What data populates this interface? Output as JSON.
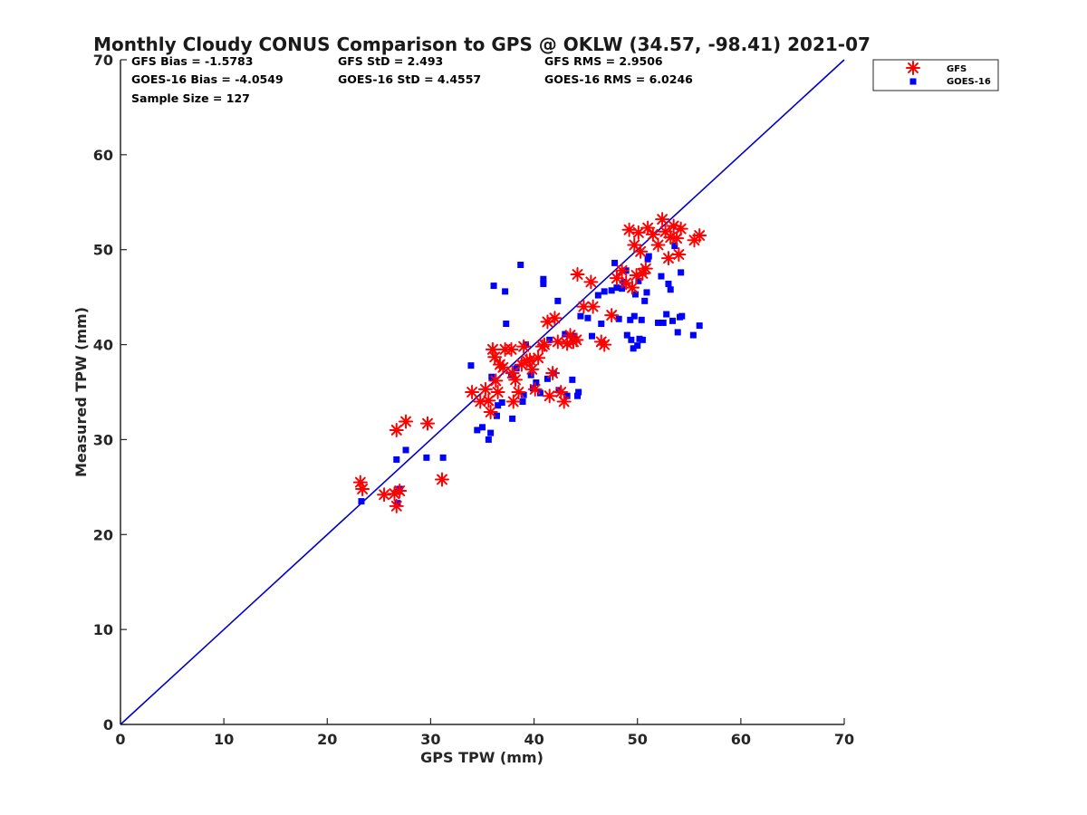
{
  "chart_data": {
    "type": "scatter",
    "title": "Monthly Cloudy CONUS Comparison to GPS @ OKLW (34.57, -98.41) 2021-07",
    "xlabel": "GPS TPW (mm)",
    "ylabel": "Measured TPW (mm)",
    "xlim": [
      0,
      70
    ],
    "ylim": [
      0,
      70
    ],
    "xticks": [
      "0",
      "10",
      "20",
      "30",
      "40",
      "50",
      "60",
      "70"
    ],
    "yticks": [
      "0",
      "10",
      "20",
      "30",
      "40",
      "50",
      "60",
      "70"
    ],
    "grid": false,
    "legend_position": "top-right-outside",
    "reference_line": {
      "from": [
        0,
        0
      ],
      "to": [
        70,
        70
      ],
      "color": "#0000cc"
    },
    "stats": [
      [
        "GFS Bias = -1.5783",
        "GFS StD = 2.493",
        "GFS RMS = 2.9506"
      ],
      [
        "GOES-16 Bias = -4.0549",
        "GOES-16 StD = 4.4557",
        "GOES-16 RMS = 6.0246"
      ],
      [
        "Sample Size = 127",
        "",
        ""
      ]
    ],
    "series": [
      {
        "name": "GFS",
        "marker": "asterisk",
        "color": "#ff0000",
        "points": [
          [
            23.2,
            25.5
          ],
          [
            23.4,
            24.8
          ],
          [
            25.5,
            24.2
          ],
          [
            26.5,
            24.3
          ],
          [
            26.7,
            23.0
          ],
          [
            27.0,
            24.6
          ],
          [
            26.7,
            31.0
          ],
          [
            27.6,
            31.9
          ],
          [
            29.7,
            31.7
          ],
          [
            31.1,
            25.8
          ],
          [
            34.0,
            35.0
          ],
          [
            34.8,
            34.0
          ],
          [
            35.3,
            35.3
          ],
          [
            35.6,
            34.1
          ],
          [
            35.8,
            32.9
          ],
          [
            36.0,
            39.5
          ],
          [
            36.2,
            38.7
          ],
          [
            36.3,
            36.2
          ],
          [
            36.5,
            35.0
          ],
          [
            36.7,
            37.9
          ],
          [
            37.0,
            37.6
          ],
          [
            37.2,
            39.5
          ],
          [
            37.8,
            39.5
          ],
          [
            37.9,
            37.0
          ],
          [
            38.0,
            34.0
          ],
          [
            38.2,
            36.3
          ],
          [
            38.5,
            35.0
          ],
          [
            38.8,
            37.9
          ],
          [
            39.0,
            39.8
          ],
          [
            39.3,
            38.3
          ],
          [
            39.6,
            38.4
          ],
          [
            39.8,
            37.4
          ],
          [
            40.1,
            35.3
          ],
          [
            40.4,
            38.6
          ],
          [
            40.8,
            39.8
          ],
          [
            41.0,
            40.0
          ],
          [
            41.3,
            42.4
          ],
          [
            41.5,
            34.6
          ],
          [
            41.8,
            37.0
          ],
          [
            42.0,
            42.8
          ],
          [
            42.3,
            40.3
          ],
          [
            42.6,
            35.0
          ],
          [
            42.9,
            34.0
          ],
          [
            43.2,
            40.1
          ],
          [
            43.5,
            41.0
          ],
          [
            43.8,
            40.3
          ],
          [
            44.1,
            40.5
          ],
          [
            44.2,
            47.4
          ],
          [
            44.8,
            44.0
          ],
          [
            45.5,
            46.6
          ],
          [
            45.7,
            44.0
          ],
          [
            46.5,
            40.3
          ],
          [
            46.8,
            40.0
          ],
          [
            47.5,
            43.1
          ],
          [
            48.0,
            47.0
          ],
          [
            48.5,
            47.8
          ],
          [
            48.9,
            46.5
          ],
          [
            49.2,
            52.1
          ],
          [
            49.5,
            46.0
          ],
          [
            49.7,
            50.5
          ],
          [
            49.9,
            47.3
          ],
          [
            50.1,
            51.8
          ],
          [
            50.3,
            49.8
          ],
          [
            50.5,
            47.5
          ],
          [
            50.8,
            48.0
          ],
          [
            51.0,
            52.3
          ],
          [
            51.5,
            51.6
          ],
          [
            52.0,
            50.5
          ],
          [
            52.4,
            53.2
          ],
          [
            52.7,
            51.9
          ],
          [
            53.0,
            49.1
          ],
          [
            53.2,
            51.3
          ],
          [
            53.5,
            52.5
          ],
          [
            53.8,
            51.2
          ],
          [
            54.0,
            49.5
          ],
          [
            54.2,
            52.2
          ],
          [
            55.5,
            51.0
          ],
          [
            56.0,
            51.5
          ]
        ]
      },
      {
        "name": "GOES-16",
        "marker": "square",
        "color": "#0000ff",
        "points": [
          [
            23.3,
            23.5
          ],
          [
            26.8,
            24.5
          ],
          [
            26.8,
            23.3
          ],
          [
            27.0,
            24.8
          ],
          [
            26.7,
            27.9
          ],
          [
            27.6,
            28.9
          ],
          [
            29.6,
            28.1
          ],
          [
            31.2,
            28.1
          ],
          [
            33.9,
            37.8
          ],
          [
            34.5,
            31.0
          ],
          [
            35.0,
            31.3
          ],
          [
            35.6,
            30.0
          ],
          [
            35.8,
            30.7
          ],
          [
            35.9,
            36.6
          ],
          [
            36.1,
            46.2
          ],
          [
            36.4,
            32.5
          ],
          [
            36.5,
            33.6
          ],
          [
            36.9,
            33.9
          ],
          [
            37.2,
            45.6
          ],
          [
            37.3,
            42.2
          ],
          [
            37.8,
            36.8
          ],
          [
            37.9,
            32.2
          ],
          [
            38.3,
            37.5
          ],
          [
            38.7,
            48.4
          ],
          [
            38.9,
            34.0
          ],
          [
            39.0,
            34.7
          ],
          [
            39.2,
            40.0
          ],
          [
            39.7,
            36.8
          ],
          [
            39.9,
            35.4
          ],
          [
            40.2,
            36.0
          ],
          [
            40.6,
            34.9
          ],
          [
            40.9,
            46.9
          ],
          [
            40.9,
            46.4
          ],
          [
            41.3,
            36.4
          ],
          [
            41.5,
            40.5
          ],
          [
            41.9,
            37.0
          ],
          [
            42.3,
            44.6
          ],
          [
            42.4,
            35.2
          ],
          [
            43.0,
            41.1
          ],
          [
            43.2,
            34.6
          ],
          [
            43.7,
            36.3
          ],
          [
            43.9,
            40.9
          ],
          [
            44.2,
            34.6
          ],
          [
            44.3,
            35.0
          ],
          [
            44.5,
            43.0
          ],
          [
            45.2,
            42.8
          ],
          [
            45.6,
            40.9
          ],
          [
            46.2,
            45.2
          ],
          [
            46.5,
            42.2
          ],
          [
            46.8,
            45.6
          ],
          [
            47.5,
            45.7
          ],
          [
            47.8,
            48.6
          ],
          [
            48.0,
            46.0
          ],
          [
            48.2,
            42.7
          ],
          [
            48.5,
            45.9
          ],
          [
            48.7,
            46.6
          ],
          [
            48.9,
            47.8
          ],
          [
            49.0,
            41.0
          ],
          [
            49.3,
            42.6
          ],
          [
            49.4,
            40.5
          ],
          [
            49.6,
            39.6
          ],
          [
            49.7,
            43.0
          ],
          [
            49.8,
            45.3
          ],
          [
            50.0,
            39.9
          ],
          [
            50.1,
            46.7
          ],
          [
            50.2,
            40.6
          ],
          [
            50.4,
            42.6
          ],
          [
            50.5,
            40.5
          ],
          [
            50.7,
            44.6
          ],
          [
            50.9,
            45.5
          ],
          [
            51.0,
            49.0
          ],
          [
            51.1,
            49.3
          ],
          [
            52.0,
            42.3
          ],
          [
            52.3,
            47.2
          ],
          [
            52.5,
            42.3
          ],
          [
            52.8,
            43.2
          ],
          [
            53.0,
            46.4
          ],
          [
            53.2,
            45.8
          ],
          [
            53.4,
            42.5
          ],
          [
            53.6,
            50.4
          ],
          [
            53.9,
            41.3
          ],
          [
            54.1,
            42.9
          ],
          [
            54.2,
            47.6
          ],
          [
            54.3,
            43.0
          ],
          [
            55.4,
            41.0
          ],
          [
            56.0,
            42.0
          ]
        ]
      }
    ]
  }
}
